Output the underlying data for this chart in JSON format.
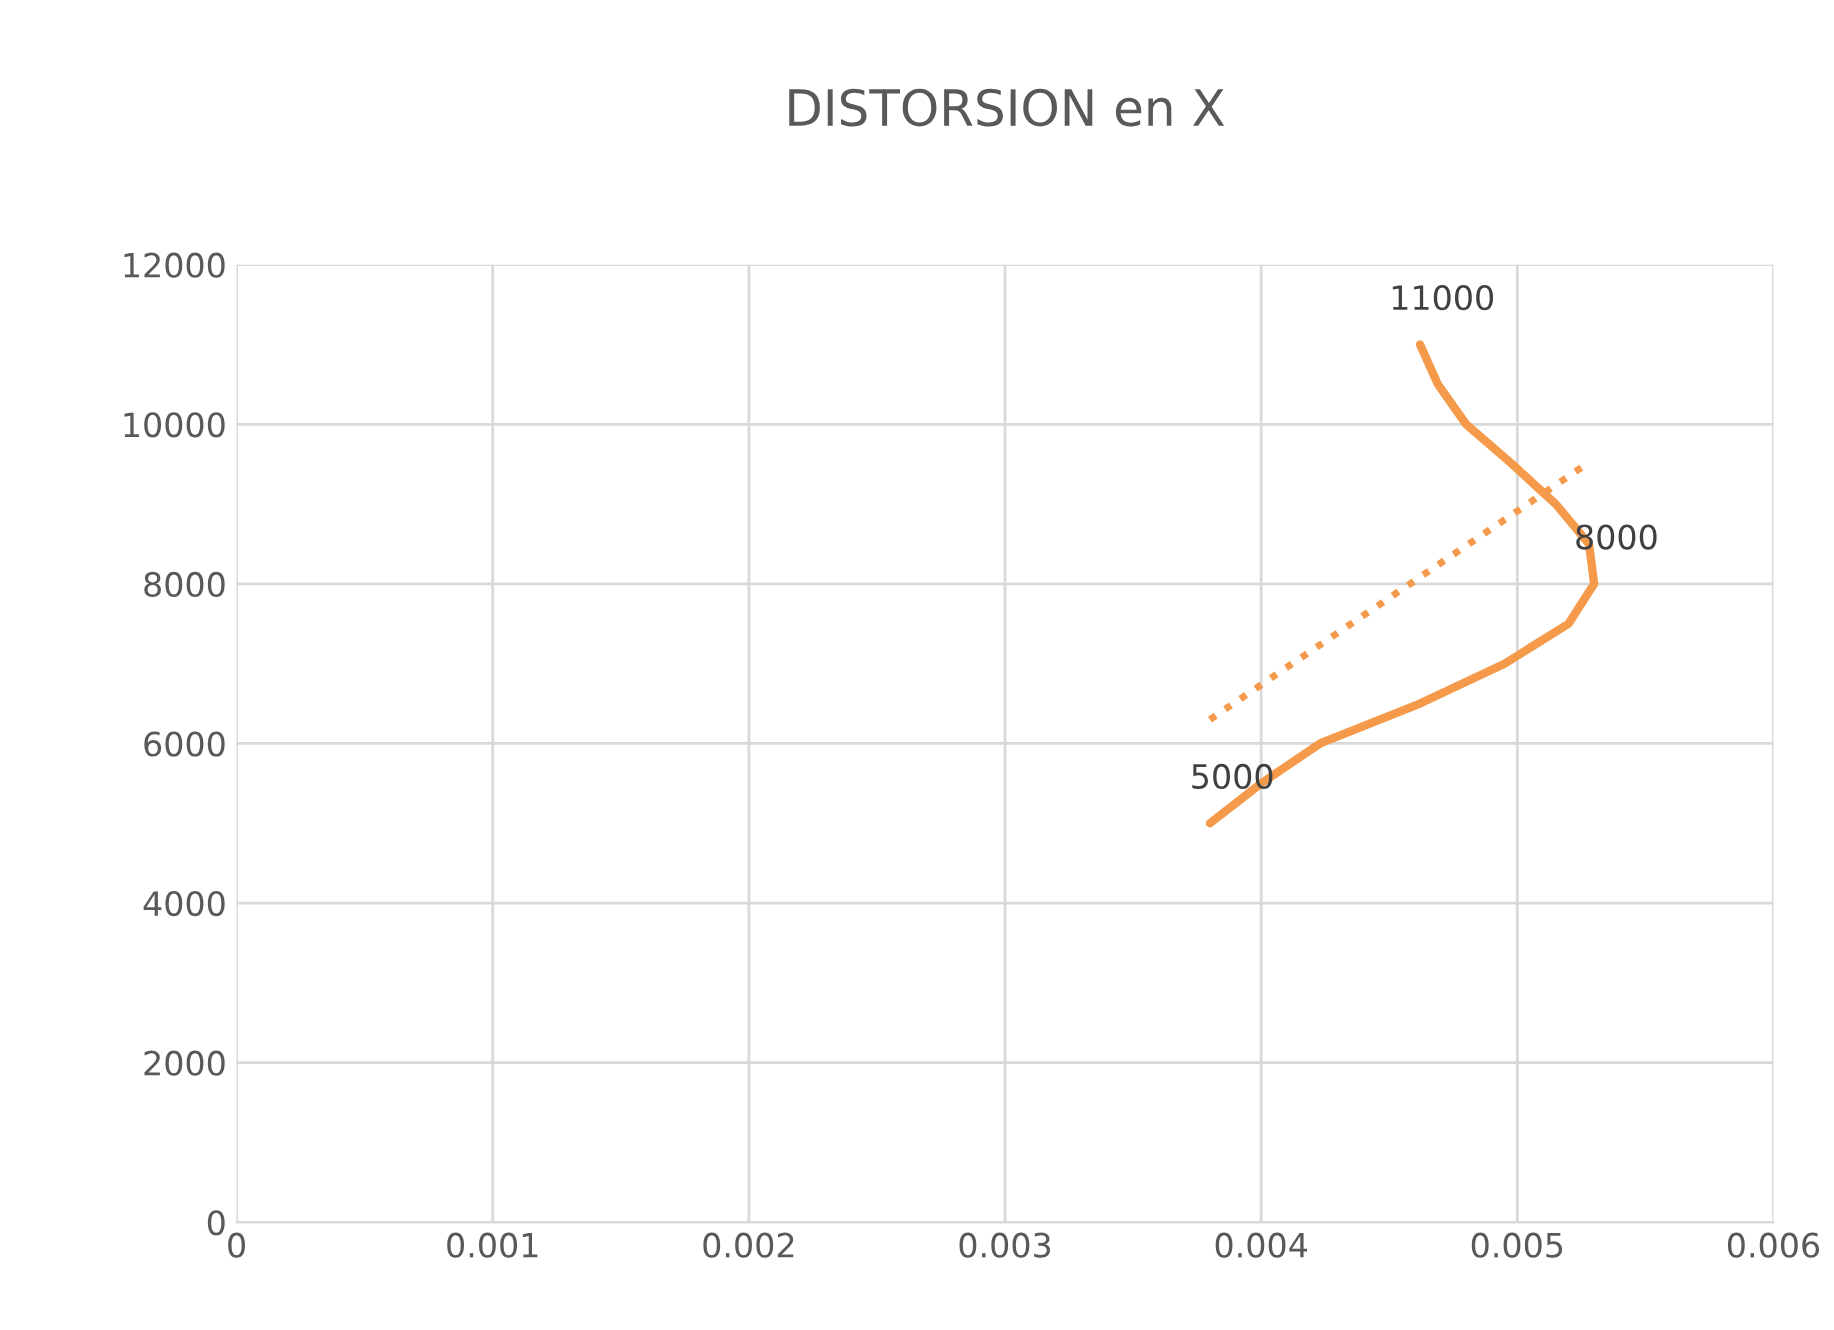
{
  "chart_data": {
    "type": "line",
    "title": "DISTORSION en X",
    "series": [
      {
        "type": "line",
        "color": "#f59a4a",
        "x": [
          0.0038,
          0.004,
          0.00423,
          0.00462,
          0.00495,
          0.0052,
          0.0053,
          0.00528,
          0.00515,
          0.00498,
          0.0048,
          0.00469,
          0.00462
        ],
        "values": [
          5000,
          5500,
          6000,
          6500,
          7000,
          7500,
          8000,
          8500,
          9000,
          9500,
          10000,
          10500,
          11000
        ],
        "value_labels": [
          "5000",
          null,
          null,
          null,
          null,
          null,
          "8000",
          null,
          null,
          null,
          null,
          null,
          "11000"
        ],
        "line_style": "solid"
      },
      {
        "type": "line",
        "color": "#f59a4a",
        "x": [
          0.0038,
          0.00527
        ],
        "values": [
          6300,
          9500
        ],
        "line_style": "dotted"
      }
    ],
    "xlim": [
      0,
      0.006
    ],
    "xticks": [
      0,
      0.001,
      0.002,
      0.003,
      0.004,
      0.005,
      0.006
    ],
    "ylim": [
      0,
      12000
    ],
    "yticks": [
      0,
      2000,
      4000,
      6000,
      8000,
      10000,
      12000
    ],
    "grid": true,
    "marker": "none"
  }
}
